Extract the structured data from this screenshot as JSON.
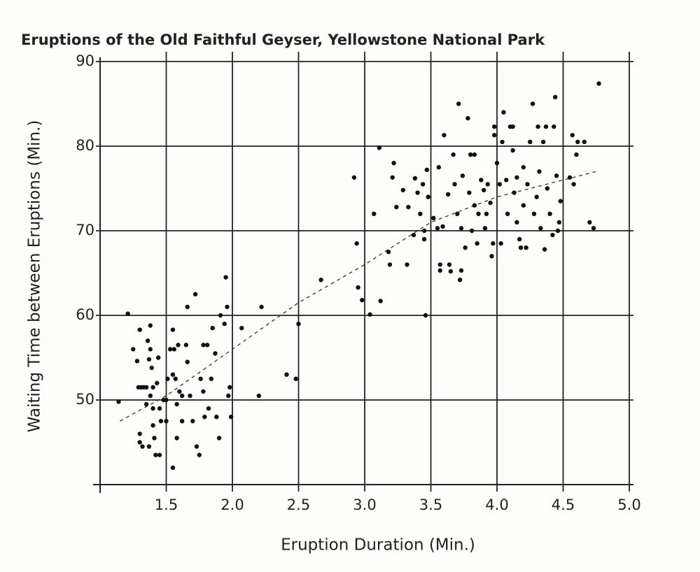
{
  "chart_data": {
    "type": "scatter",
    "title": "Eruptions of the Old Faithful Geyser, Yellowstone National Park",
    "x_label": "Eruption Duration (Min.)",
    "y_label": "Waiting Time between Eruptions (Min.)",
    "xlim": [
      1,
      5
    ],
    "ylim": [
      40,
      90
    ],
    "xticks": [
      1.5,
      {
        "value": 2,
        "label": "2.0"
      },
      2.5,
      {
        "value": 3,
        "label": "3.0"
      },
      3.5,
      {
        "value": 4,
        "label": "4.0"
      },
      4.5,
      {
        "value": 5,
        "label": "5.0"
      }
    ],
    "yticks": [
      50,
      60,
      70,
      80,
      90
    ],
    "grid": true,
    "series": [
      {
        "color": "#111111",
        "x": [
          1.14,
          1.21,
          1.25,
          1.28,
          1.3,
          1.29,
          1.31,
          1.33,
          1.35,
          1.3,
          1.3,
          1.32,
          1.35,
          1.36,
          1.38,
          1.38,
          1.37,
          1.39,
          1.38,
          1.4,
          1.4,
          1.4,
          1.41,
          1.37,
          1.42,
          1.45,
          1.43,
          1.44,
          1.45,
          1.46,
          1.48,
          1.5,
          1.5,
          1.51,
          1.53,
          1.55,
          1.55,
          1.56,
          1.57,
          1.58,
          1.58,
          1.55,
          1.59,
          1.6,
          1.62,
          1.62,
          1.65,
          1.66,
          1.66,
          1.68,
          1.7,
          1.72,
          1.73,
          1.75,
          1.76,
          1.78,
          1.78,
          1.79,
          1.81,
          1.82,
          1.84,
          1.85,
          1.87,
          1.88,
          1.9,
          1.91,
          1.94,
          1.95,
          1.96,
          1.97,
          1.98,
          1.99,
          2.07,
          2.2,
          2.22,
          2.41,
          2.48,
          2.5,
          2.67,
          2.92,
          2.94,
          2.95,
          2.98,
          3.04,
          3.07,
          3.11,
          3.12,
          3.18,
          3.19,
          3.21,
          3.22,
          3.24,
          3.29,
          3.32,
          3.33,
          3.37,
          3.38,
          3.4,
          3.42,
          3.44,
          3.45,
          3.45,
          3.46,
          3.47,
          3.48,
          3.52,
          3.55,
          3.56,
          3.57,
          3.57,
          3.59,
          3.6,
          3.63,
          3.64,
          3.65,
          3.67,
          3.68,
          3.7,
          3.71,
          3.72,
          3.73,
          3.73,
          3.74,
          3.76,
          3.78,
          3.79,
          3.8,
          3.81,
          3.83,
          3.83,
          3.85,
          3.86,
          3.88,
          3.9,
          3.91,
          3.92,
          3.93,
          3.95,
          3.96,
          3.97,
          3.98,
          3.98,
          4.0,
          4.02,
          4.03,
          4.04,
          4.05,
          4.07,
          4.08,
          4.1,
          4.12,
          4.12,
          4.13,
          4.15,
          4.15,
          4.17,
          4.18,
          4.2,
          4.2,
          4.22,
          4.23,
          4.25,
          4.27,
          4.28,
          4.3,
          4.31,
          4.32,
          4.33,
          4.35,
          4.36,
          4.37,
          4.38,
          4.4,
          4.42,
          4.43,
          4.44,
          4.45,
          4.46,
          4.47,
          4.48,
          4.55,
          4.57,
          4.58,
          4.6,
          4.61,
          4.66,
          4.7,
          4.73,
          4.77
        ],
        "values": [
          49.8,
          60.2,
          56,
          54.6,
          58.3,
          51.5,
          51.5,
          51.5,
          51.5,
          46,
          45,
          44.5,
          49.5,
          57,
          58.8,
          56,
          54.8,
          53.8,
          50.5,
          51.5,
          49,
          47,
          45.5,
          44.5,
          43.5,
          43.5,
          52,
          55,
          49,
          47.5,
          50,
          47.5,
          50,
          52.5,
          56,
          58.3,
          53,
          56,
          52.5,
          49.5,
          45.5,
          42,
          56.5,
          51,
          50.5,
          47.5,
          56.5,
          61,
          54.5,
          50.5,
          47.5,
          62.5,
          44.5,
          43.5,
          52.5,
          56.5,
          51,
          48,
          56.5,
          49,
          52.5,
          58.5,
          55.5,
          48,
          45.5,
          60,
          59,
          64.5,
          61,
          50.5,
          51.5,
          48,
          58.5,
          50.5,
          61,
          53,
          52.5,
          59,
          64.2,
          76.3,
          68.5,
          63.3,
          61.8,
          60.1,
          72,
          79.8,
          61.7,
          67.5,
          66,
          76.3,
          78,
          72.8,
          74.8,
          66,
          72.8,
          69.5,
          76.2,
          74.5,
          72,
          75.5,
          70,
          69,
          60,
          77.2,
          74,
          71.5,
          70.3,
          77.5,
          66,
          65.3,
          70.5,
          81.3,
          74.3,
          66,
          65.2,
          79,
          75.5,
          72,
          85,
          64.2,
          65.3,
          70.3,
          76.5,
          68,
          83.3,
          74.5,
          79,
          70,
          79,
          73,
          68.5,
          72,
          76,
          74.8,
          70.3,
          72,
          75.5,
          73.3,
          67,
          68.5,
          82.3,
          81.3,
          78,
          75.5,
          68.5,
          80.5,
          84,
          76,
          72,
          82.3,
          82.3,
          79.5,
          74.5,
          76.3,
          71,
          69,
          68,
          73,
          77.5,
          68,
          75.5,
          80.5,
          85,
          72,
          74,
          82.3,
          77,
          70.3,
          80.5,
          67.8,
          82.3,
          75,
          72,
          69.5,
          82.3,
          85.8,
          76.5,
          70,
          71,
          73.5,
          76.3,
          81.3,
          75.5,
          79,
          80.5,
          80.5,
          71,
          70.3,
          87.4
        ]
      }
    ],
    "trend": {
      "x": [
        1.15,
        1.5,
        2.0,
        2.5,
        3.0,
        3.5,
        4.0,
        4.5,
        4.75
      ],
      "values": [
        47.5,
        50.5,
        56,
        61.5,
        66,
        71,
        74,
        76,
        77
      ]
    }
  }
}
